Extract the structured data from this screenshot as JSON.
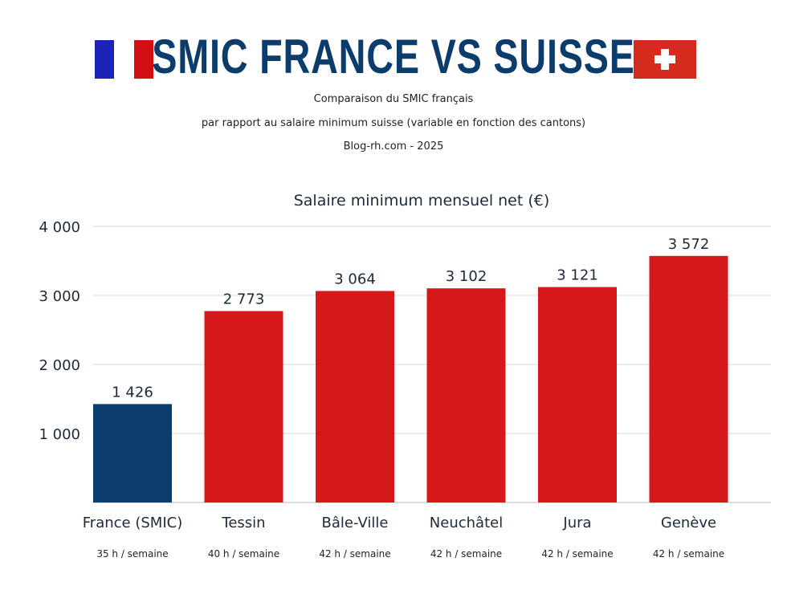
{
  "header": {
    "title": "SMIC FRANCE VS SUISSE",
    "subtitle_lines": [
      "Comparaison du SMIC français",
      "par rapport au salaire minimum suisse (variable en fonction des cantons)",
      "Blog-rh.com - 2025"
    ],
    "left_flag": "france-flag",
    "right_flag": "swiss-flag"
  },
  "chart_data": {
    "type": "bar",
    "title": "Salaire minimum mensuel net (€)",
    "categories": [
      "France (SMIC)",
      "Tessin",
      "Bâle-Ville",
      "Neuchâtel",
      "Jura",
      "Genève"
    ],
    "sub_labels": [
      "35 h / semaine",
      "40 h / semaine",
      "42 h / semaine",
      "42 h / semaine",
      "42 h / semaine",
      "42 h / semaine"
    ],
    "values": [
      1426,
      2773,
      3064,
      3102,
      3121,
      3572
    ],
    "data_labels": [
      "1 426",
      "2 773",
      "3 064",
      "3 102",
      "3 121",
      "3 572"
    ],
    "colors": [
      "#0b3d6e",
      "#d6181b",
      "#d6181b",
      "#d6181b",
      "#d6181b",
      "#d6181b"
    ],
    "ylim": [
      0,
      4000
    ],
    "yticks": [
      1000,
      2000,
      3000,
      4000
    ],
    "ytick_labels": [
      "1 000",
      "2 000",
      "3 000",
      "4 000"
    ],
    "grid": true
  }
}
